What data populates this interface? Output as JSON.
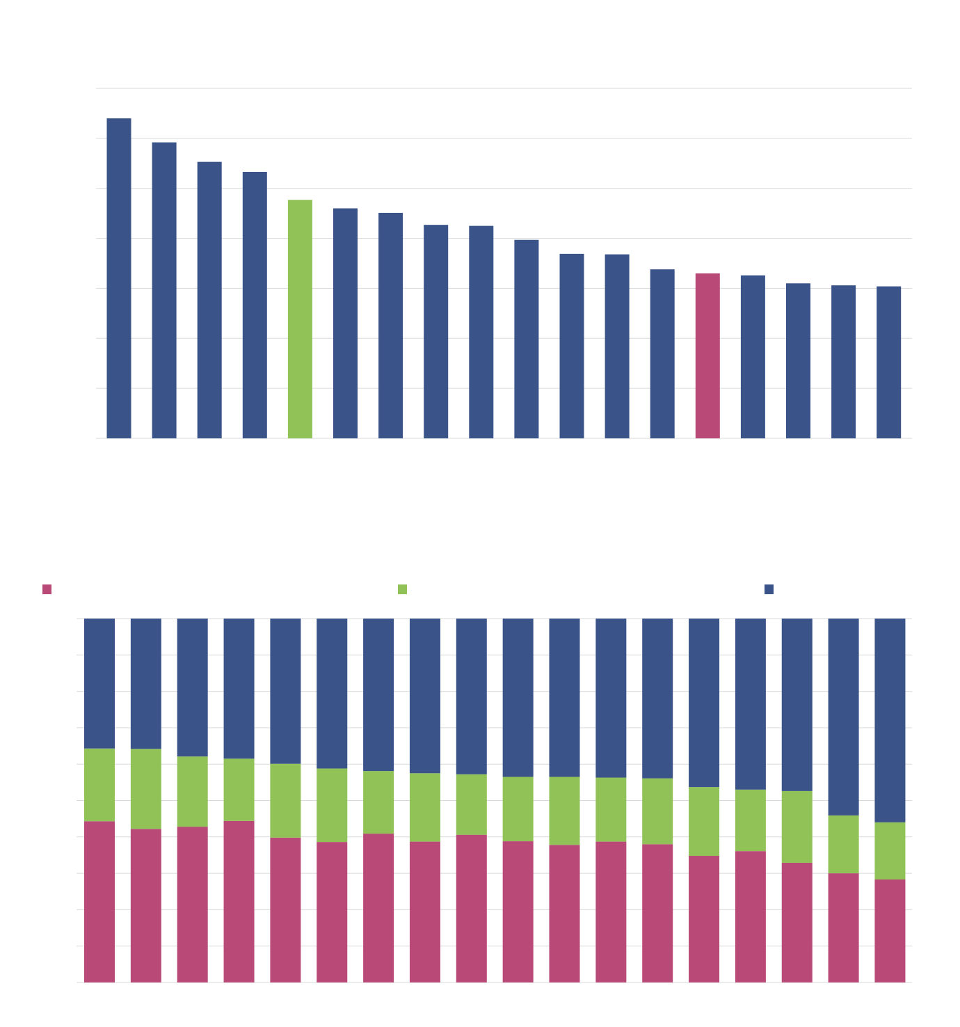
{
  "chart_data": [
    {
      "type": "bar",
      "title": "",
      "xlabel": "",
      "ylabel": "",
      "ylim": [
        0,
        7
      ],
      "grid": true,
      "categories": [
        "",
        "",
        "",
        "",
        "",
        "",
        "",
        "",
        "",
        "",
        "",
        "",
        "",
        "",
        "",
        "",
        "",
        ""
      ],
      "values": [
        6.4,
        5.92,
        5.53,
        5.33,
        4.77,
        4.6,
        4.51,
        4.27,
        4.25,
        3.97,
        3.69,
        3.68,
        3.38,
        3.3,
        3.26,
        3.1,
        3.06,
        3.04
      ],
      "colors": {
        "default": "#3a5489",
        "highlight_green": "#91c258",
        "highlight_pink": "#b94a78"
      },
      "highlight": {
        "4": "highlight_green",
        "13": "highlight_pink"
      }
    },
    {
      "type": "bar",
      "stacked": true,
      "title": "",
      "xlabel": "",
      "ylabel": "",
      "ylim": [
        0,
        100
      ],
      "grid": true,
      "legend_position": "top",
      "categories": [
        "",
        "",
        "",
        "",
        "",
        "",
        "",
        "",
        "",
        "",
        "",
        "",
        "",
        "",
        "",
        "",
        "",
        ""
      ],
      "series": [
        {
          "color": "#b94a78",
          "values": [
            44.3,
            42.2,
            42.8,
            44.4,
            39.8,
            38.6,
            40.9,
            38.7,
            40.6,
            38.8,
            37.8,
            38.7,
            38.0,
            34.8,
            36.1,
            32.9,
            30.0,
            28.3
          ]
        },
        {
          "color": "#91c258",
          "values": [
            20.0,
            22.0,
            19.3,
            17.1,
            20.3,
            20.2,
            17.2,
            18.8,
            16.6,
            17.7,
            18.7,
            17.6,
            18.1,
            18.9,
            16.9,
            19.7,
            15.9,
            15.7
          ]
        },
        {
          "color": "#3a5489",
          "values": [
            35.7,
            35.8,
            37.9,
            38.5,
            39.9,
            41.2,
            41.9,
            42.5,
            42.8,
            43.5,
            43.5,
            43.7,
            43.9,
            46.3,
            47.0,
            47.4,
            54.1,
            56.0
          ]
        }
      ]
    }
  ]
}
